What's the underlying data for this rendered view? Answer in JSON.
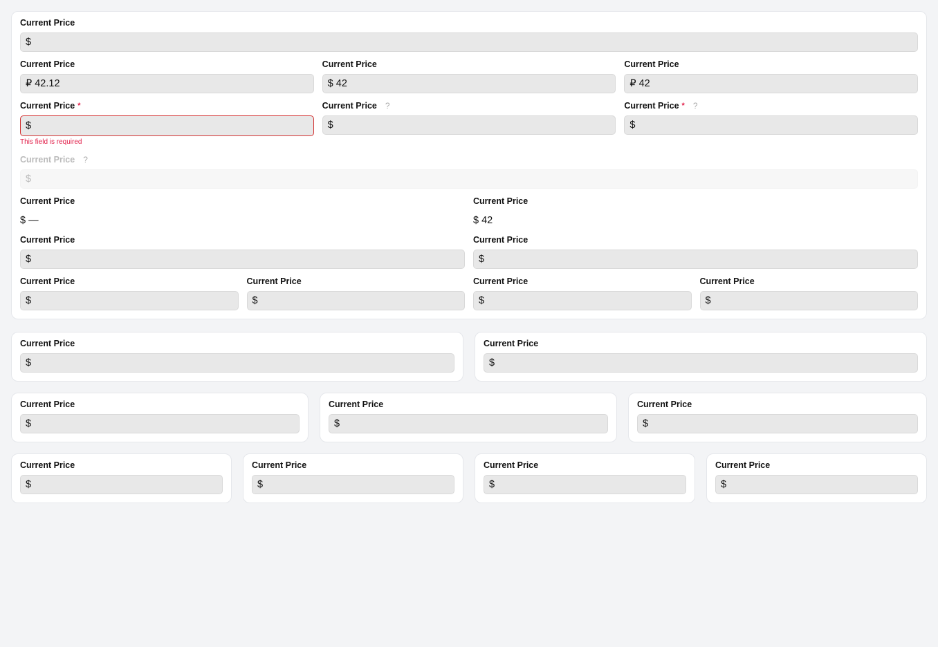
{
  "label": "Current Price",
  "required_mark": "*",
  "help_mark": "?",
  "colors": {
    "error": "#d32f2f",
    "required": "#e11d48",
    "background": "#f3f4f6",
    "input": "#e8e8e8"
  },
  "cards": [
    {
      "rows": [
        [
          {
            "currency": "$",
            "value": ""
          }
        ],
        [
          {
            "currency": "₽",
            "value": "42.12"
          },
          {
            "currency": "$",
            "value": "42"
          },
          {
            "currency": "₽",
            "value": "42"
          }
        ],
        [
          {
            "currency": "$",
            "value": "",
            "required": true,
            "error": "This field is required"
          },
          {
            "currency": "$",
            "value": "",
            "help": true
          },
          {
            "currency": "$",
            "value": "",
            "required": true,
            "help": true
          }
        ],
        [
          {
            "currency": "$",
            "value": "",
            "help": true,
            "disabled": true
          }
        ],
        [
          {
            "currency": "$",
            "value": "—",
            "readonly": true
          },
          {
            "currency": "$",
            "value": "42",
            "readonly": true
          }
        ],
        [
          {
            "currency": "$",
            "value": ""
          },
          {
            "currency": "$",
            "value": ""
          }
        ],
        [
          {
            "currency": "$",
            "value": ""
          },
          {
            "currency": "$",
            "value": ""
          },
          {
            "currency": "$",
            "value": ""
          },
          {
            "currency": "$",
            "value": ""
          }
        ]
      ]
    },
    {
      "rows": [
        [
          {
            "currency": "$",
            "value": ""
          }
        ]
      ]
    },
    {
      "rows": [
        [
          {
            "currency": "$",
            "value": ""
          }
        ]
      ]
    },
    {
      "rows": [
        [
          {
            "currency": "$",
            "value": ""
          }
        ]
      ]
    },
    {
      "rows": [
        [
          {
            "currency": "$",
            "value": ""
          }
        ]
      ]
    },
    {
      "rows": [
        [
          {
            "currency": "$",
            "value": ""
          }
        ]
      ]
    },
    {
      "rows": [
        [
          {
            "currency": "$",
            "value": ""
          }
        ]
      ]
    },
    {
      "rows": [
        [
          {
            "currency": "$",
            "value": ""
          }
        ]
      ]
    },
    {
      "rows": [
        [
          {
            "currency": "$",
            "value": ""
          }
        ]
      ]
    },
    {
      "rows": [
        [
          {
            "currency": "$",
            "value": ""
          }
        ]
      ]
    }
  ]
}
